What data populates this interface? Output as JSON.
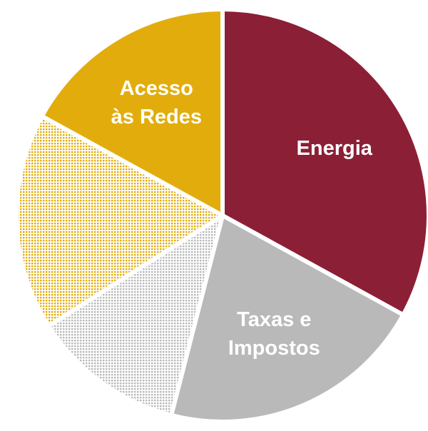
{
  "chart_data": {
    "type": "pie",
    "categories": [
      [
        "Energia"
      ],
      [
        "Taxas e",
        "Impostos"
      ],
      null,
      null,
      [
        "Acesso",
        "às Redes"
      ]
    ],
    "values": [
      33,
      21,
      12,
      17,
      17
    ],
    "colors": [
      "#8b1f36",
      "#b9b9b9",
      "#b9b9b9",
      "#e2ad0c",
      "#e2ad0c"
    ],
    "dotted": [
      false,
      false,
      true,
      true,
      false
    ],
    "start_angle": 0,
    "direction": "clockwise"
  }
}
